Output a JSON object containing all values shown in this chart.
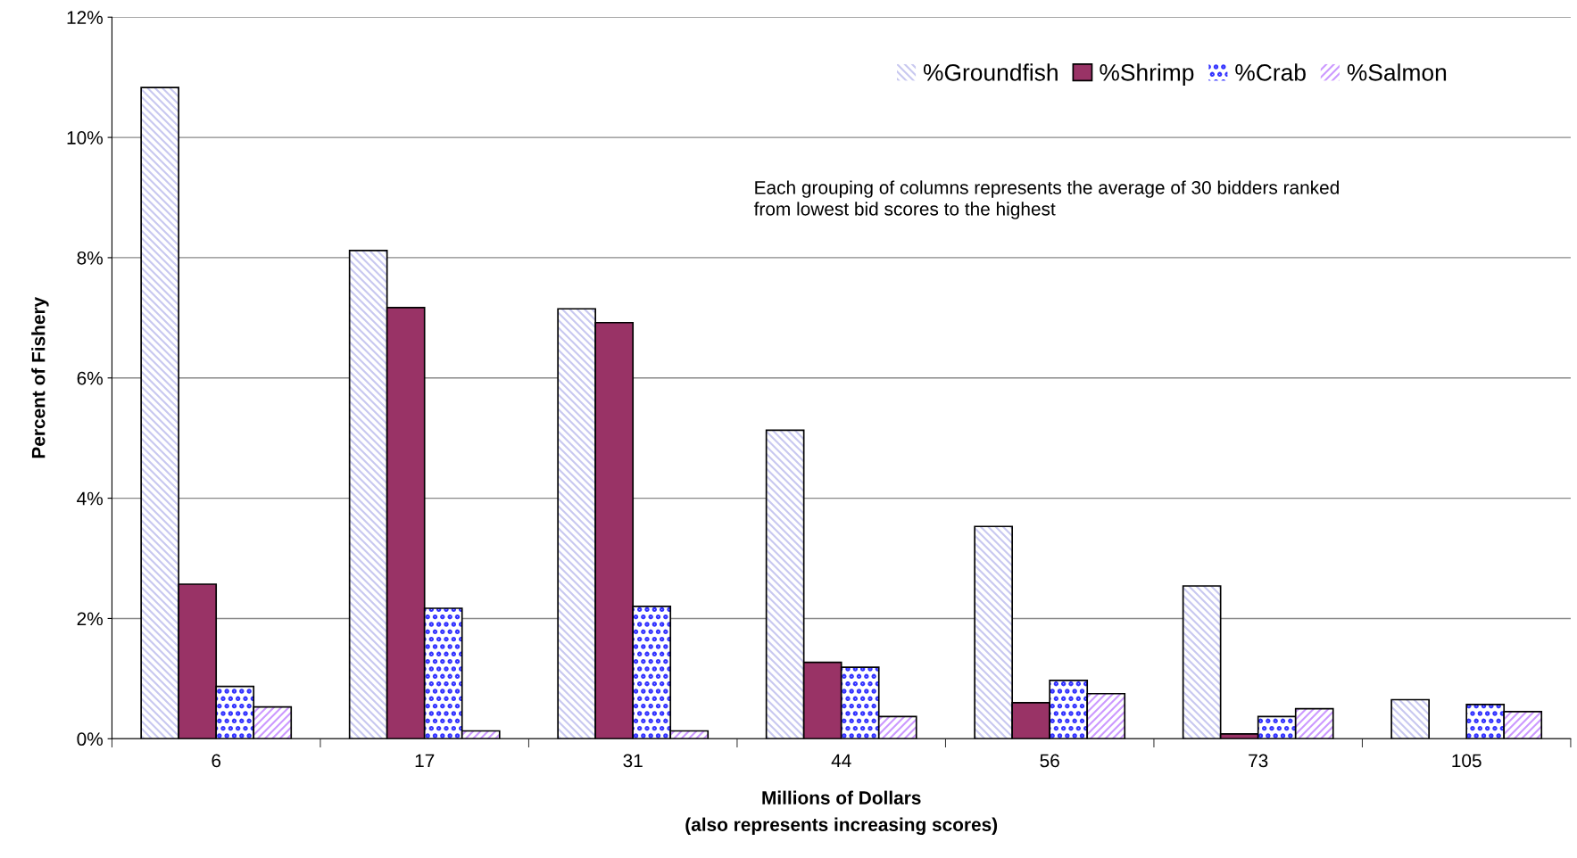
{
  "chart_data": {
    "type": "bar",
    "xlabel": "Millions of Dollars\n(also represents increasing scores)",
    "ylabel": "Percent of Fishery",
    "categories": [
      "6",
      "17",
      "31",
      "44",
      "56",
      "73",
      "105"
    ],
    "series": [
      {
        "name": "%Groundfish",
        "color": "#c8c8f0",
        "values": [
          10.83,
          8.12,
          7.15,
          5.13,
          3.53,
          2.54,
          0.65
        ]
      },
      {
        "name": "%Shrimp",
        "color": "#993366",
        "values": [
          2.57,
          7.17,
          6.92,
          1.27,
          0.6,
          0.08,
          null
        ]
      },
      {
        "name": "%Crab",
        "color": "#3333ff",
        "values": [
          0.87,
          2.17,
          2.2,
          1.19,
          0.97,
          0.37,
          0.57
        ]
      },
      {
        "name": "%Salmon",
        "color": "#cc99ff",
        "values": [
          0.53,
          0.13,
          0.13,
          0.37,
          0.75,
          0.5,
          0.45
        ]
      }
    ],
    "ylim": [
      0,
      12
    ],
    "yticks": [
      {
        "value": 0,
        "label": "0%"
      },
      {
        "value": 2,
        "label": "2%"
      },
      {
        "value": 4,
        "label": "4%"
      },
      {
        "value": 6,
        "label": "6%"
      },
      {
        "value": 8,
        "label": "8%"
      },
      {
        "value": 10,
        "label": "10%"
      },
      {
        "value": 12,
        "label": "12%"
      }
    ],
    "grid": "y",
    "legend": "top right",
    "annotations": [
      "Each grouping of columns represents the average of 30 bidders ranked\nfrom lowest bid scores to the highest"
    ]
  }
}
